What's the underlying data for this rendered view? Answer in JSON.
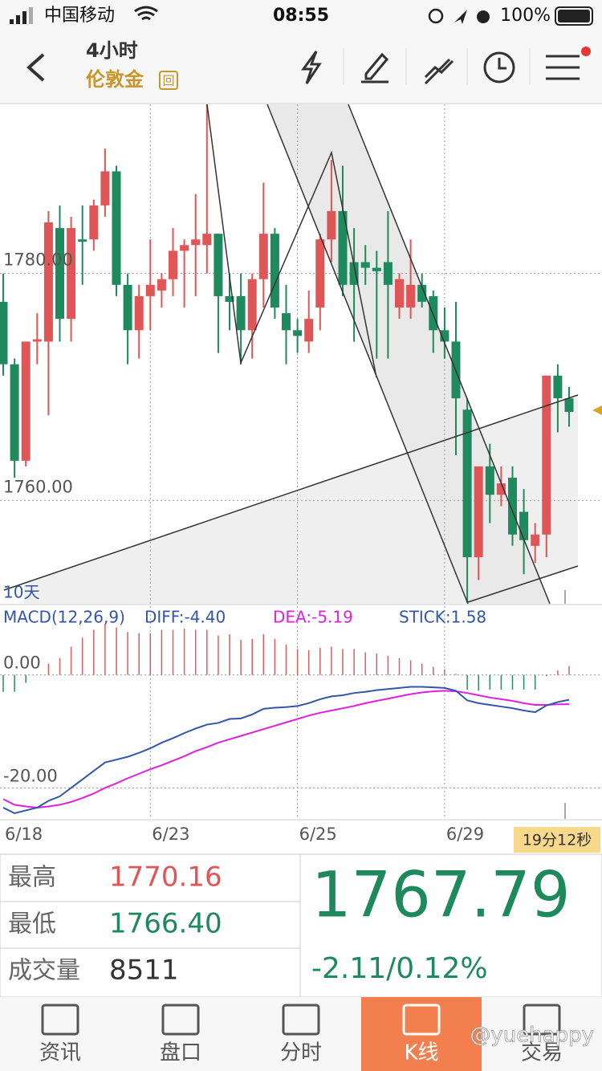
{
  "status_bar": {
    "carrier": "中国移动",
    "time": "08:55",
    "battery": "100%"
  },
  "header": {
    "period": "4小时",
    "symbol": "伦敦金",
    "badge": "回"
  },
  "chart_data": [
    {
      "type": "candlestick",
      "categories": [
        "6/18",
        null,
        null,
        null,
        null,
        null,
        null,
        null,
        null,
        null,
        null,
        null,
        null,
        "6/23",
        null,
        null,
        null,
        null,
        null,
        null,
        null,
        null,
        null,
        null,
        null,
        null,
        "6/25",
        null,
        null,
        null,
        null,
        null,
        null,
        null,
        null,
        null,
        null,
        null,
        null,
        "6/29",
        null,
        null,
        null,
        null,
        null,
        null,
        null,
        null,
        null,
        null,
        null
      ],
      "open": [
        1777.5,
        1772,
        1763.5,
        1774,
        1774,
        1784,
        1776,
        1783,
        1783,
        1786,
        1789,
        1779,
        1775,
        1778,
        1778.5,
        1779.5,
        1782,
        1782.5,
        1782.5,
        1783.5,
        1778,
        1778,
        1775,
        1779.5,
        1783.5,
        1776.5,
        1775,
        1774,
        1777,
        1783,
        1785.5,
        1781,
        1781,
        1780.5,
        1781,
        1777,
        1777,
        1779,
        1778,
        1775,
        1774,
        1768,
        1755,
        1763,
        1760.5,
        1762,
        1759,
        1756,
        1757,
        1771,
        1769
      ],
      "high": [
        1780,
        1772.5,
        1774,
        1776.5,
        1785.5,
        1786,
        1785,
        1786,
        1786.5,
        1791,
        1789.5,
        1780,
        1779,
        1783,
        1780,
        1784,
        1783,
        1787,
        1794.9,
        1783.5,
        1780,
        1780,
        1780,
        1788,
        1784,
        1779,
        1776,
        1778.5,
        1783.5,
        1790,
        1789.5,
        1784,
        1782.5,
        1782,
        1785.5,
        1780,
        1783,
        1780,
        1778.5,
        1777,
        1777.5,
        1769,
        1763,
        1765,
        1763,
        1763,
        1761,
        1758,
        1771,
        1772,
        1770
      ],
      "low": [
        1771,
        1762,
        1763,
        1772,
        1767.5,
        1774,
        1774,
        1779,
        1782,
        1785,
        1778,
        1772,
        1772.5,
        1775,
        1777,
        1778,
        1777,
        1778,
        1780,
        1773,
        1775,
        1772,
        1772.5,
        1777,
        1776,
        1772,
        1773,
        1773,
        1775,
        1781,
        1778,
        1774,
        1779,
        1772.5,
        1772.5,
        1776,
        1776,
        1777,
        1773,
        1772.5,
        1764,
        1751,
        1753,
        1758,
        1759.5,
        1756,
        1753.5,
        1754.5,
        1755,
        1766,
        1766.5
      ],
      "close": [
        1772,
        1763.5,
        1774,
        1774.2,
        1784.5,
        1776,
        1784,
        1782.8,
        1786,
        1789,
        1779,
        1775,
        1778,
        1779,
        1779.5,
        1782,
        1782.5,
        1783,
        1783.5,
        1778,
        1777.5,
        1775,
        1779.5,
        1783.5,
        1777,
        1775,
        1774.5,
        1776,
        1783,
        1785.5,
        1779,
        1779,
        1780.5,
        1780.2,
        1779,
        1779.5,
        1779,
        1777.5,
        1775,
        1774,
        1769,
        1755,
        1763,
        1760.5,
        1761.5,
        1757,
        1756.5,
        1757,
        1771,
        1769,
        1767.8
      ],
      "up_color": "#e05656",
      "down_color": "#1f8a5e",
      "ylim": [
        1750.9,
        1794.9
      ],
      "yticks": [
        {
          "value": 1760,
          "label": "1760.00"
        },
        {
          "value": 1780,
          "label": "1780.00"
        }
      ],
      "grid": true,
      "period_label": "10天",
      "countdown": "19分12秒"
    },
    {
      "type": "macd",
      "title": "MACD(12,26,9)",
      "series": [
        {
          "name": "DIFF:-4.40",
          "color": "#3355aa",
          "values": [
            -23.5,
            -24.5,
            -24,
            -23.5,
            -22.3,
            -21.5,
            -20,
            -18.5,
            -17,
            -15.5,
            -15,
            -14.5,
            -13.8,
            -13,
            -12,
            -11.2,
            -10.3,
            -9.5,
            -8.8,
            -8.5,
            -7.8,
            -7.7,
            -7,
            -6,
            -5.8,
            -5.7,
            -5.5,
            -5,
            -4.3,
            -3.8,
            -3.6,
            -3.2,
            -3,
            -2.7,
            -2.5,
            -2.3,
            -2.1,
            -2.1,
            -2.2,
            -2.3,
            -2.8,
            -4.5,
            -5,
            -5.3,
            -5.6,
            -5.9,
            -6.3,
            -6.6,
            -5.4,
            -4.8,
            -4.4
          ]
        },
        {
          "name": "DEA:-5.19",
          "color": "#e020e0",
          "values": [
            -22,
            -23,
            -23.3,
            -23.5,
            -23.3,
            -23,
            -22.5,
            -21.8,
            -21,
            -20,
            -19.2,
            -18.3,
            -17.5,
            -16.7,
            -16,
            -15.2,
            -14.4,
            -13.5,
            -12.8,
            -12,
            -11.4,
            -10.8,
            -10.2,
            -9.6,
            -9,
            -8.4,
            -7.8,
            -7.2,
            -6.7,
            -6.3,
            -5.9,
            -5.5,
            -5,
            -4.6,
            -4.2,
            -3.8,
            -3.4,
            -3.1,
            -2.9,
            -2.8,
            -2.9,
            -3.2,
            -3.6,
            -4,
            -4.3,
            -4.6,
            -5,
            -5.3,
            -5.3,
            -5.2,
            -5.19
          ]
        },
        {
          "name": "STICK:1.58",
          "color": "#3355aa",
          "values": [
            -3,
            -3,
            -1.4,
            0,
            2,
            3,
            5,
            6.6,
            8,
            9,
            8.4,
            7.6,
            7.4,
            7.4,
            8,
            8,
            8.2,
            8,
            8,
            7,
            7.2,
            6.2,
            6.4,
            7.2,
            6.4,
            5.4,
            4.6,
            4.4,
            4.8,
            5,
            4.6,
            4.6,
            4,
            3.8,
            3.4,
            3,
            2.6,
            2,
            1.4,
            1,
            0.2,
            -2.6,
            -2.8,
            -2.6,
            -2.6,
            -2.6,
            -2.6,
            -2.6,
            -0.2,
            0.8,
            1.58
          ]
        }
      ],
      "stick_up_color": "#d66060",
      "stick_down_color": "#2a8a66",
      "ylim": [
        -25.5,
        11.9
      ],
      "yticks": [
        {
          "value": -20,
          "label": "-20.00"
        },
        {
          "value": 0,
          "label": "0.00"
        }
      ],
      "grid": true
    }
  ],
  "quote": {
    "rows": [
      {
        "label": "最高",
        "value": "1770.16"
      },
      {
        "label": "最低",
        "value": "1766.40"
      },
      {
        "label": "成交量",
        "value": "8511"
      }
    ],
    "price": "1767.79",
    "change": "-2.11/0.12%"
  },
  "tabs": [
    "资讯",
    "盘口",
    "分时",
    "K线",
    "交易"
  ],
  "watermark": "@yuehappy"
}
